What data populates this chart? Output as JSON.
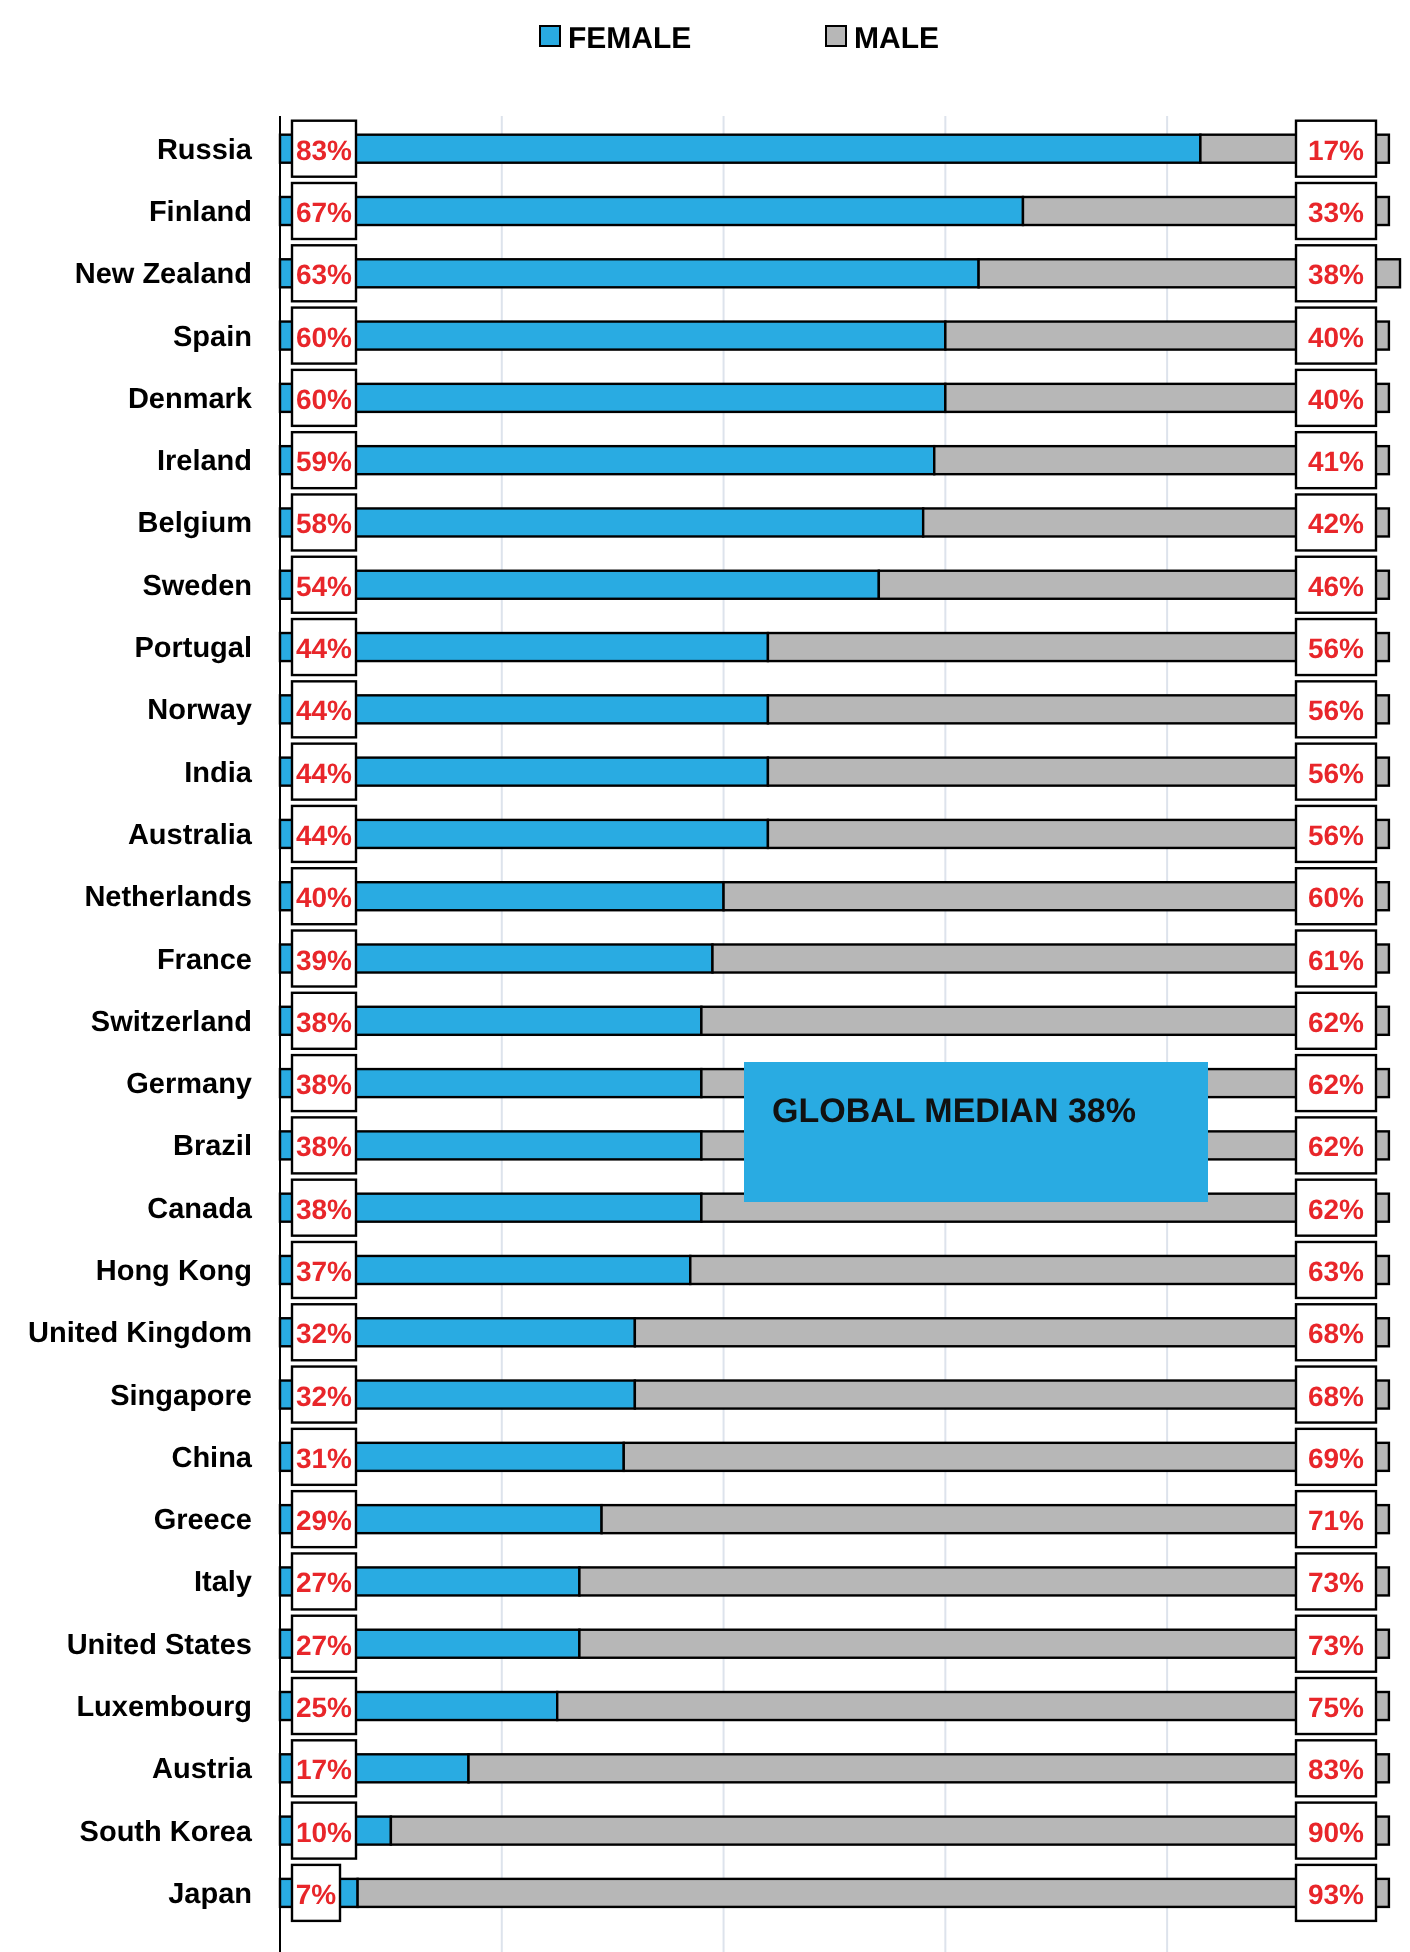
{
  "chart_data": {
    "type": "bar",
    "orientation": "horizontal",
    "stacked": true,
    "categories": [
      "Russia",
      "Finland",
      "New Zealand",
      "Spain",
      "Denmark",
      "Ireland",
      "Belgium",
      "Sweden",
      "Portugal",
      "Norway",
      "India",
      "Australia",
      "Netherlands",
      "France",
      "Switzerland",
      "Germany",
      "Brazil",
      "Canada",
      "Hong Kong",
      "United Kingdom",
      "Singapore",
      "China",
      "Greece",
      "Italy",
      "United States",
      "Luxembourg",
      "Austria",
      "South Korea",
      "Japan"
    ],
    "series": [
      {
        "name": "FEMALE",
        "color": "#29abe2",
        "values": [
          83,
          67,
          63,
          60,
          60,
          59,
          58,
          54,
          44,
          44,
          44,
          44,
          40,
          39,
          38,
          38,
          38,
          38,
          37,
          32,
          32,
          31,
          29,
          27,
          27,
          25,
          17,
          10,
          7
        ],
        "value_labels": [
          "83%",
          "67%",
          "63%",
          "60%",
          "60%",
          "59%",
          "58%",
          "54%",
          "44%",
          "44%",
          "44%",
          "44%",
          "40%",
          "39%",
          "38%",
          "38%",
          "38%",
          "38%",
          "37%",
          "32%",
          "32%",
          "31%",
          "29%",
          "27%",
          "27%",
          "25%",
          "17%",
          "10%",
          "7%"
        ]
      },
      {
        "name": "MALE",
        "color": "#b7b7b7",
        "values": [
          17,
          33,
          38,
          40,
          40,
          41,
          42,
          46,
          56,
          56,
          56,
          56,
          60,
          61,
          62,
          62,
          62,
          62,
          63,
          68,
          68,
          69,
          71,
          73,
          73,
          75,
          83,
          90,
          93
        ],
        "value_labels": [
          "17%",
          "33%",
          "38%",
          "40%",
          "40%",
          "41%",
          "42%",
          "46%",
          "56%",
          "56%",
          "56%",
          "56%",
          "60%",
          "61%",
          "62%",
          "62%",
          "62%",
          "62%",
          "63%",
          "68%",
          "68%",
          "69%",
          "71%",
          "73%",
          "73%",
          "75%",
          "83%",
          "90%",
          "93%"
        ]
      }
    ],
    "xlim": [
      0,
      101
    ],
    "xticks": [
      {
        "value": 20,
        "label": null
      },
      {
        "value": 40,
        "label": null
      },
      {
        "value": 60,
        "label": null
      },
      {
        "value": 80,
        "label": null
      }
    ],
    "grid": "x",
    "tick_labels": "y",
    "legend": "top",
    "annotations": [
      "GLOBAL MEDIAN 38%"
    ]
  }
}
